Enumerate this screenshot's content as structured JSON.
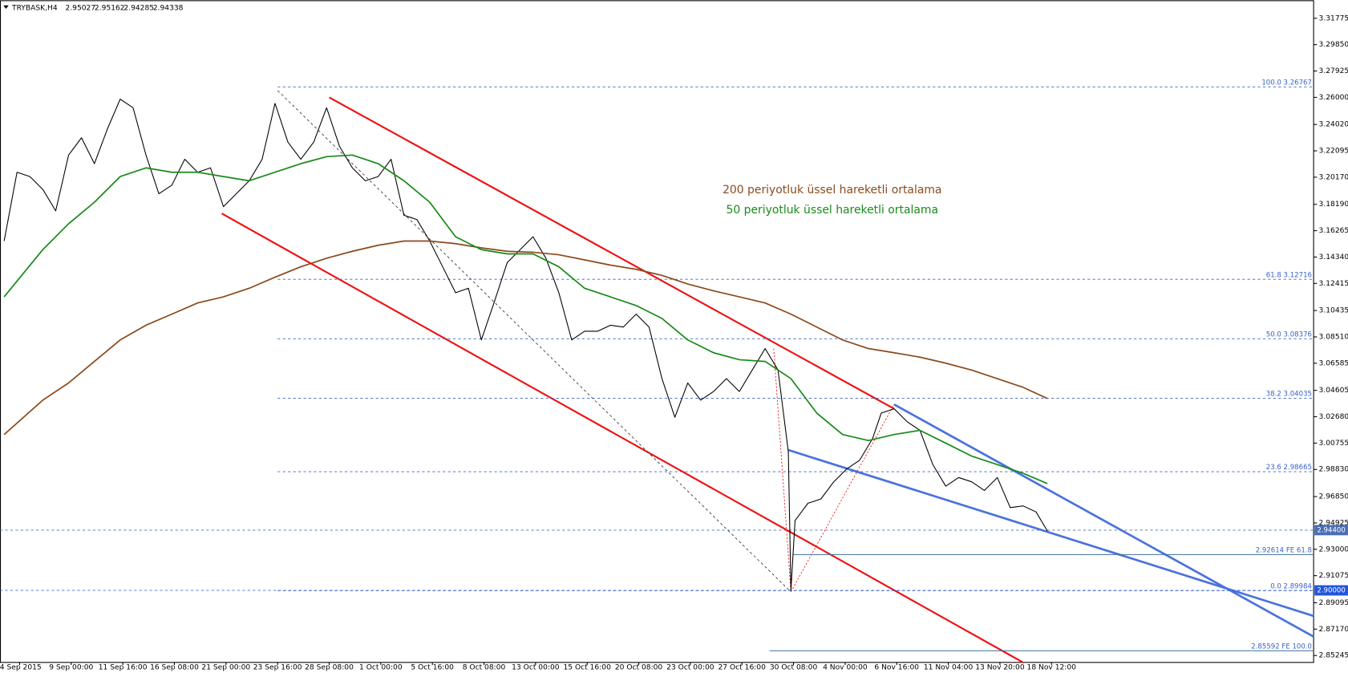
{
  "chart_data": {
    "type": "line",
    "symbol": "TRYBASK,H4",
    "ohlc": [
      2.95027,
      2.95162,
      2.94285,
      2.94338
    ],
    "xlim": [
      -0.38,
      25.08
    ],
    "ylim": [
      2.8474,
      3.3309
    ],
    "xticks": [
      {
        "value": 0,
        "label": "4 Sep 2015"
      },
      {
        "value": 1,
        "label": "9 Sep 00:00"
      },
      {
        "value": 2,
        "label": "11 Sep 16:00"
      },
      {
        "value": 3,
        "label": "16 Sep 08:00"
      },
      {
        "value": 4,
        "label": "21 Sep 00:00"
      },
      {
        "value": 5,
        "label": "23 Sep 16:00"
      },
      {
        "value": 6,
        "label": "28 Sep 08:00"
      },
      {
        "value": 7,
        "label": "1 Oct 00:00"
      },
      {
        "value": 8,
        "label": "5 Oct 16:00"
      },
      {
        "value": 9,
        "label": "8 Oct 08:00"
      },
      {
        "value": 10,
        "label": "13 Oct 00:00"
      },
      {
        "value": 11,
        "label": "15 Oct 16:00"
      },
      {
        "value": 12,
        "label": "20 Oct 08:00"
      },
      {
        "value": 13,
        "label": "23 Oct 00:00"
      },
      {
        "value": 14,
        "label": "27 Oct 16:00"
      },
      {
        "value": 15,
        "label": "30 Oct 08:00"
      },
      {
        "value": 16,
        "label": "4 Nov 00:00"
      },
      {
        "value": 17,
        "label": "6 Nov 16:00"
      },
      {
        "value": 18,
        "label": "11 Nov 04:00"
      },
      {
        "value": 19,
        "label": "13 Nov 20:00"
      },
      {
        "value": 20,
        "label": "18 Nov 12:00"
      }
    ],
    "yticks": [
      3.31775,
      {
        "value": 3.2985,
        "label": "3.29850"
      },
      3.27925,
      {
        "value": 3.26,
        "label": "3.26000"
      },
      {
        "value": 3.2402,
        "label": "3.24020"
      },
      3.22095,
      {
        "value": 3.2017,
        "label": "3.20170"
      },
      {
        "value": 3.1819,
        "label": "3.18190"
      },
      3.16265,
      {
        "value": 3.1434,
        "label": "3.14340"
      },
      3.12415,
      3.10435,
      {
        "value": 3.0851,
        "label": "3.08510"
      },
      3.06585,
      3.04605,
      {
        "value": 3.0268,
        "label": "3.02680"
      },
      3.00755,
      {
        "value": 2.9883,
        "label": "2.98830"
      },
      {
        "value": 2.9685,
        "label": "2.96850"
      },
      2.94925,
      {
        "value": 2.93,
        "label": "2.93000"
      },
      2.91075,
      2.89095,
      {
        "value": 2.8717,
        "label": "2.87170"
      },
      2.85245
    ],
    "series": [
      {
        "color": "#000000",
        "x": [
          -0.3,
          -0.05,
          0.2,
          0.45,
          0.7,
          0.95,
          1.2,
          1.45,
          1.7,
          1.95,
          2.2,
          2.45,
          2.7,
          2.95,
          3.2,
          3.45,
          3.7,
          3.95,
          4.2,
          4.45,
          4.7,
          4.95,
          5.2,
          5.45,
          5.7,
          5.95,
          6.2,
          6.45,
          6.7,
          6.95,
          7.2,
          7.45,
          7.7,
          7.95,
          8.2,
          8.45,
          8.7,
          8.95,
          9.2,
          9.45,
          9.7,
          9.95,
          10.2,
          10.45,
          10.7,
          10.95,
          11.2,
          11.45,
          11.7,
          11.95,
          12.2,
          12.45,
          12.7,
          12.95,
          13.2,
          13.45,
          13.7,
          13.95,
          14.2,
          14.45,
          14.7,
          14.9,
          14.95,
          15.03,
          15.28,
          15.53,
          15.78,
          16.03,
          16.28,
          16.53,
          16.7,
          16.95,
          17.2,
          17.45,
          17.7,
          17.95,
          18.2,
          18.45,
          18.7,
          18.95,
          19.2,
          19.45,
          19.7,
          19.92
        ],
        "values": [
          3.1551,
          3.2053,
          3.2022,
          3.1928,
          3.1771,
          3.2179,
          3.2305,
          3.2116,
          3.2367,
          3.2587,
          3.2524,
          3.2179,
          3.1896,
          3.1959,
          3.2148,
          3.2053,
          3.2085,
          3.1802,
          3.1896,
          3.1991,
          3.2148,
          3.2556,
          3.2273,
          3.2148,
          3.2273,
          3.2524,
          3.2242,
          3.2085,
          3.1991,
          3.2022,
          3.2148,
          3.1739,
          3.1708,
          3.1551,
          3.1363,
          3.1174,
          3.1206,
          3.0829,
          3.1107,
          3.1394,
          3.1488,
          3.1582,
          3.1425,
          3.1174,
          3.0829,
          3.0892,
          3.0892,
          3.0936,
          3.0923,
          3.1017,
          3.0923,
          3.0546,
          3.0264,
          3.0515,
          3.0389,
          3.0452,
          3.0546,
          3.0452,
          3.0609,
          3.0766,
          3.0609,
          3.0012,
          2.9,
          2.951,
          2.9636,
          2.9667,
          2.9793,
          2.9887,
          2.995,
          3.0107,
          3.0295,
          3.0326,
          3.0232,
          3.0169,
          2.9918,
          2.9761,
          2.9824,
          2.9793,
          2.973,
          2.9824,
          2.9604,
          2.9617,
          2.9573,
          2.94338
        ]
      },
      {
        "name": "200 periyotluk üssel hareketli ortalama",
        "color": "#8b4a1c",
        "x": [
          -0.3,
          0.45,
          0.95,
          1.45,
          1.95,
          2.45,
          2.95,
          3.45,
          3.95,
          4.45,
          4.95,
          5.45,
          5.95,
          6.45,
          6.95,
          7.45,
          7.95,
          8.45,
          8.95,
          9.45,
          9.95,
          10.45,
          10.95,
          11.45,
          11.95,
          12.45,
          12.95,
          13.45,
          13.95,
          14.45,
          14.95,
          15.45,
          15.95,
          16.45,
          16.95,
          17.45,
          17.95,
          18.45,
          18.95,
          19.45,
          19.92
        ],
        "values": [
          3.0138,
          3.0389,
          3.0515,
          3.0672,
          3.0829,
          3.0936,
          3.1017,
          3.1099,
          3.1143,
          3.1206,
          3.1287,
          3.1363,
          3.1425,
          3.1476,
          3.152,
          3.1551,
          3.1551,
          3.1532,
          3.1501,
          3.1476,
          3.1469,
          3.1451,
          3.1413,
          3.1375,
          3.1344,
          3.13,
          3.1237,
          3.1187,
          3.1143,
          3.1099,
          3.1017,
          3.0923,
          3.0829,
          3.0766,
          3.0735,
          3.0703,
          3.0659,
          3.0609,
          3.0546,
          3.0483,
          3.0401
        ]
      },
      {
        "name": "50 periyotluk üssel hareketli ortalama",
        "color": "#1a8a1a",
        "x": [
          -0.3,
          0.45,
          0.95,
          1.45,
          1.95,
          2.45,
          2.95,
          3.45,
          3.95,
          4.45,
          4.95,
          5.45,
          5.95,
          6.45,
          6.95,
          7.45,
          7.95,
          8.45,
          8.95,
          9.45,
          9.95,
          10.45,
          10.95,
          11.45,
          11.95,
          12.45,
          12.95,
          13.45,
          13.95,
          14.45,
          14.95,
          15.45,
          15.95,
          16.45,
          16.95,
          17.45,
          17.95,
          18.45,
          18.95,
          19.45,
          19.92
        ],
        "values": [
          3.1143,
          3.1488,
          3.1677,
          3.1834,
          3.2022,
          3.2085,
          3.2053,
          3.2053,
          3.2022,
          3.1991,
          3.2053,
          3.2116,
          3.2167,
          3.2179,
          3.2116,
          3.1991,
          3.1834,
          3.1582,
          3.1488,
          3.1457,
          3.1457,
          3.1363,
          3.1206,
          3.1143,
          3.108,
          3.0986,
          3.0829,
          3.0735,
          3.0684,
          3.0672,
          3.0546,
          3.0295,
          3.0138,
          3.0094,
          3.0138,
          3.0169,
          3.0075,
          2.9981,
          2.9918,
          2.9855,
          2.978
        ]
      }
    ],
    "fib_levels": [
      {
        "value": 3.26767,
        "label": "100.0 3.26767"
      },
      {
        "value": 3.12716,
        "label": "61.8 3.12716"
      },
      {
        "value": 3.08376,
        "label": "50.0 3.08376"
      },
      {
        "value": 3.04035,
        "label": "38.2 3.04035"
      },
      {
        "value": 2.98665,
        "label": "23.6 2.98665"
      },
      {
        "value": 2.89984,
        "label": "0.0 2.89984"
      }
    ],
    "fe_levels": [
      {
        "value": 2.92614,
        "label": "2.92614 FE 61.8"
      },
      {
        "value": 2.85592,
        "label": "2.85592 FE 100.0"
      }
    ],
    "price_lines": [
      {
        "value": 2.944,
        "label": "2.94400",
        "color": "#4a6fb5"
      },
      {
        "value": 2.9,
        "label": "2.90000",
        "color": "#2255dd"
      }
    ]
  }
}
